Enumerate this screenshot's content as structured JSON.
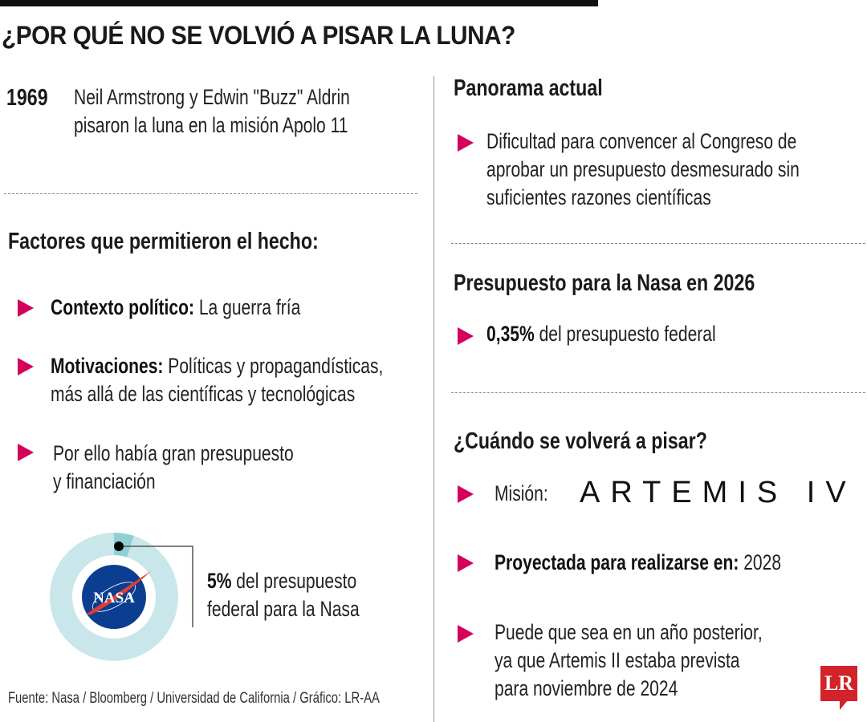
{
  "title": "¿POR QUÉ NO SE VOLVIÓ A PISAR LA LUNA?",
  "left": {
    "year": "1969",
    "year_text": [
      "Neil Armstrong y Edwin \"Buzz\" Aldrin",
      "pisaron la luna en la misión Apolo 11"
    ],
    "factors_heading": "Factores que permitieron el hecho:",
    "factors": [
      {
        "bold": "Contexto político:",
        "text": " La guerra fría"
      },
      {
        "bold": "Motivaciones:",
        "text": " Políticas y propagandísticas,",
        "line2": "más allá de las científicas y tecnológicas"
      },
      {
        "text": "Por ello había gran presupuesto",
        "line2": "y financiación"
      }
    ],
    "donut": {
      "percent": 5,
      "bold": "5%",
      "text": " del presupuesto",
      "line2": "federal para la Nasa",
      "logo": "NASA",
      "colors": {
        "base": "#c9e7ea",
        "segment": "#8fd0d6"
      }
    },
    "source": "Fuente: Nasa / Bloomberg / Universidad de California / Gráfico: LR-AA"
  },
  "right": {
    "panorama_heading": "Panorama actual",
    "panorama": [
      "Dificultad para convencer al Congreso de",
      "aprobar un presupuesto desmesurado sin",
      "suficientes razones científicas"
    ],
    "budget_heading": "Presupuesto para la Nasa en 2026",
    "budget_bold": "0,35%",
    "budget_text": " del presupuesto federal",
    "when_heading": "¿Cuándo se volverá a pisar?",
    "mission_label": "Misión:",
    "mission_name": "ARTEMIS IV",
    "projected_bold": "Proyectada para realizarse en:",
    "projected_year": " 2028",
    "later": [
      "Puede que sea en un año posterior,",
      "ya que Artemis II estaba prevista",
      "para noviembre de 2024"
    ]
  },
  "brand": "LR",
  "accent": "#d4005c"
}
